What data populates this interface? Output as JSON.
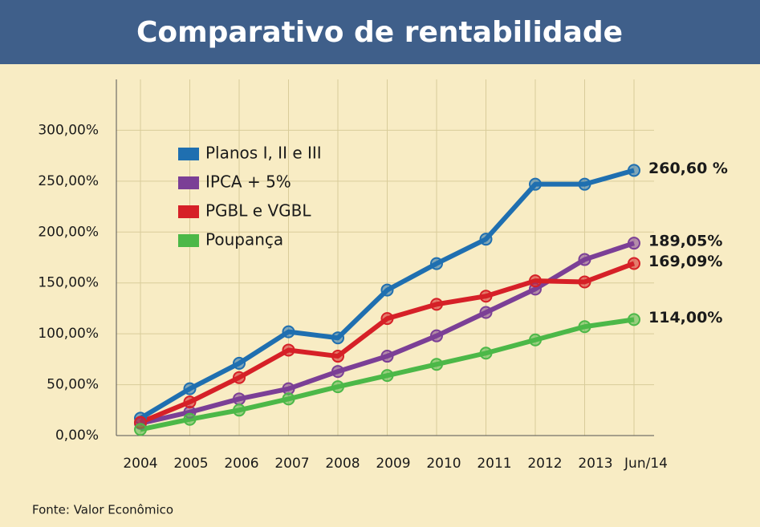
{
  "chart_data": {
    "type": "line",
    "title": "Comparativo de rentabilidade",
    "source": "Fonte: Valor Econômico",
    "categories": [
      "2004",
      "2005",
      "2006",
      "2007",
      "2008",
      "2009",
      "2010",
      "2011",
      "2012",
      "2013",
      "Jun/14"
    ],
    "series": [
      {
        "name": "Planos I, II e III",
        "color": "#1f6fb0",
        "values": [
          17,
          46,
          71,
          102,
          96,
          143,
          169,
          193,
          247,
          247,
          260.6
        ],
        "value_labels": [
          null,
          null,
          null,
          null,
          null,
          null,
          null,
          null,
          null,
          null,
          "260,60 %"
        ]
      },
      {
        "name": "IPCA + 5%",
        "color": "#7b3f96",
        "values": [
          12,
          23,
          36,
          46,
          63,
          78,
          98,
          121,
          144,
          173,
          189.05
        ],
        "value_labels": [
          null,
          null,
          null,
          null,
          null,
          null,
          null,
          null,
          null,
          null,
          "189,05%"
        ]
      },
      {
        "name": "PGBL e VGBL",
        "color": "#d62027",
        "values": [
          13,
          33,
          57,
          84,
          78,
          115,
          129,
          137,
          152,
          151,
          169.09
        ],
        "value_labels": [
          null,
          null,
          null,
          null,
          null,
          null,
          null,
          null,
          null,
          null,
          "169,09%"
        ]
      },
      {
        "name": "Poupança",
        "color": "#4cb848",
        "values": [
          6,
          16,
          25,
          36,
          48,
          59,
          70,
          81,
          94,
          107,
          114
        ],
        "value_labels": [
          null,
          null,
          null,
          null,
          null,
          null,
          null,
          null,
          null,
          null,
          "114,00%"
        ]
      }
    ],
    "ylim": [
      0,
      350
    ],
    "yticks": [
      {
        "value": 0,
        "label": "0,00%"
      },
      {
        "value": 50,
        "label": "50,00%"
      },
      {
        "value": 100,
        "label": "100,00%"
      },
      {
        "value": 150,
        "label": "150,00%"
      },
      {
        "value": 200,
        "label": "200,00%"
      },
      {
        "value": 250,
        "label": "250,00%"
      },
      {
        "value": 300,
        "label": "300,00%"
      }
    ],
    "grid": true,
    "legend": "upper left"
  }
}
